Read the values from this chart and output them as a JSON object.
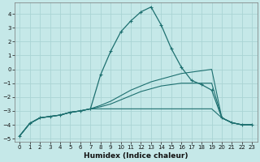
{
  "title": "",
  "xlabel": "Humidex (Indice chaleur)",
  "xlim": [
    -0.5,
    23.5
  ],
  "ylim": [
    -5.2,
    4.8
  ],
  "yticks": [
    -5,
    -4,
    -3,
    -2,
    -1,
    0,
    1,
    2,
    3,
    4
  ],
  "xticks": [
    0,
    1,
    2,
    3,
    4,
    5,
    6,
    7,
    8,
    9,
    10,
    11,
    12,
    13,
    14,
    15,
    16,
    17,
    18,
    19,
    20,
    21,
    22,
    23
  ],
  "background_color": "#c5e8e8",
  "grid_color": "#aad4d4",
  "line_color": "#1e7070",
  "series_main": {
    "x": [
      0,
      1,
      2,
      3,
      4,
      5,
      6,
      7,
      8,
      9,
      10,
      11,
      12,
      13,
      14,
      15,
      16,
      17,
      18,
      19,
      20,
      21,
      22,
      23
    ],
    "y": [
      -4.8,
      -3.9,
      -3.5,
      -3.4,
      -3.3,
      -3.1,
      -3.0,
      -2.85,
      -0.4,
      1.3,
      2.7,
      3.5,
      4.15,
      4.5,
      3.2,
      1.5,
      0.15,
      -0.8,
      -1.1,
      -1.5,
      -3.5,
      -3.85,
      -4.0,
      -4.0
    ]
  },
  "series_flat": {
    "x": [
      0,
      1,
      2,
      3,
      4,
      5,
      6,
      7,
      8,
      9,
      10,
      11,
      12,
      13,
      14,
      15,
      16,
      17,
      18,
      19,
      20,
      21,
      22,
      23
    ],
    "y": [
      -4.8,
      -3.9,
      -3.5,
      -3.4,
      -3.3,
      -3.1,
      -3.0,
      -2.85,
      -2.85,
      -2.85,
      -2.85,
      -2.85,
      -2.85,
      -2.85,
      -2.85,
      -2.85,
      -2.85,
      -2.85,
      -2.85,
      -2.85,
      -3.5,
      -3.85,
      -4.0,
      -4.0
    ]
  },
  "series_diag1": {
    "x": [
      0,
      1,
      2,
      3,
      4,
      5,
      6,
      7,
      8,
      9,
      10,
      11,
      12,
      13,
      14,
      15,
      16,
      17,
      18,
      19,
      20,
      21,
      22,
      23
    ],
    "y": [
      -4.8,
      -3.9,
      -3.5,
      -3.4,
      -3.3,
      -3.1,
      -3.0,
      -2.85,
      -2.7,
      -2.5,
      -2.2,
      -1.9,
      -1.6,
      -1.4,
      -1.2,
      -1.1,
      -1.0,
      -1.0,
      -1.0,
      -1.0,
      -3.5,
      -3.85,
      -4.0,
      -4.0
    ]
  },
  "series_diag2": {
    "x": [
      0,
      1,
      2,
      3,
      4,
      5,
      6,
      7,
      8,
      9,
      10,
      11,
      12,
      13,
      14,
      15,
      16,
      17,
      18,
      19,
      20,
      21,
      22,
      23
    ],
    "y": [
      -4.8,
      -3.9,
      -3.5,
      -3.4,
      -3.3,
      -3.1,
      -3.0,
      -2.85,
      -2.6,
      -2.3,
      -1.9,
      -1.5,
      -1.2,
      -0.9,
      -0.7,
      -0.5,
      -0.3,
      -0.2,
      -0.1,
      0.0,
      -3.5,
      -3.85,
      -4.0,
      -4.0
    ]
  }
}
